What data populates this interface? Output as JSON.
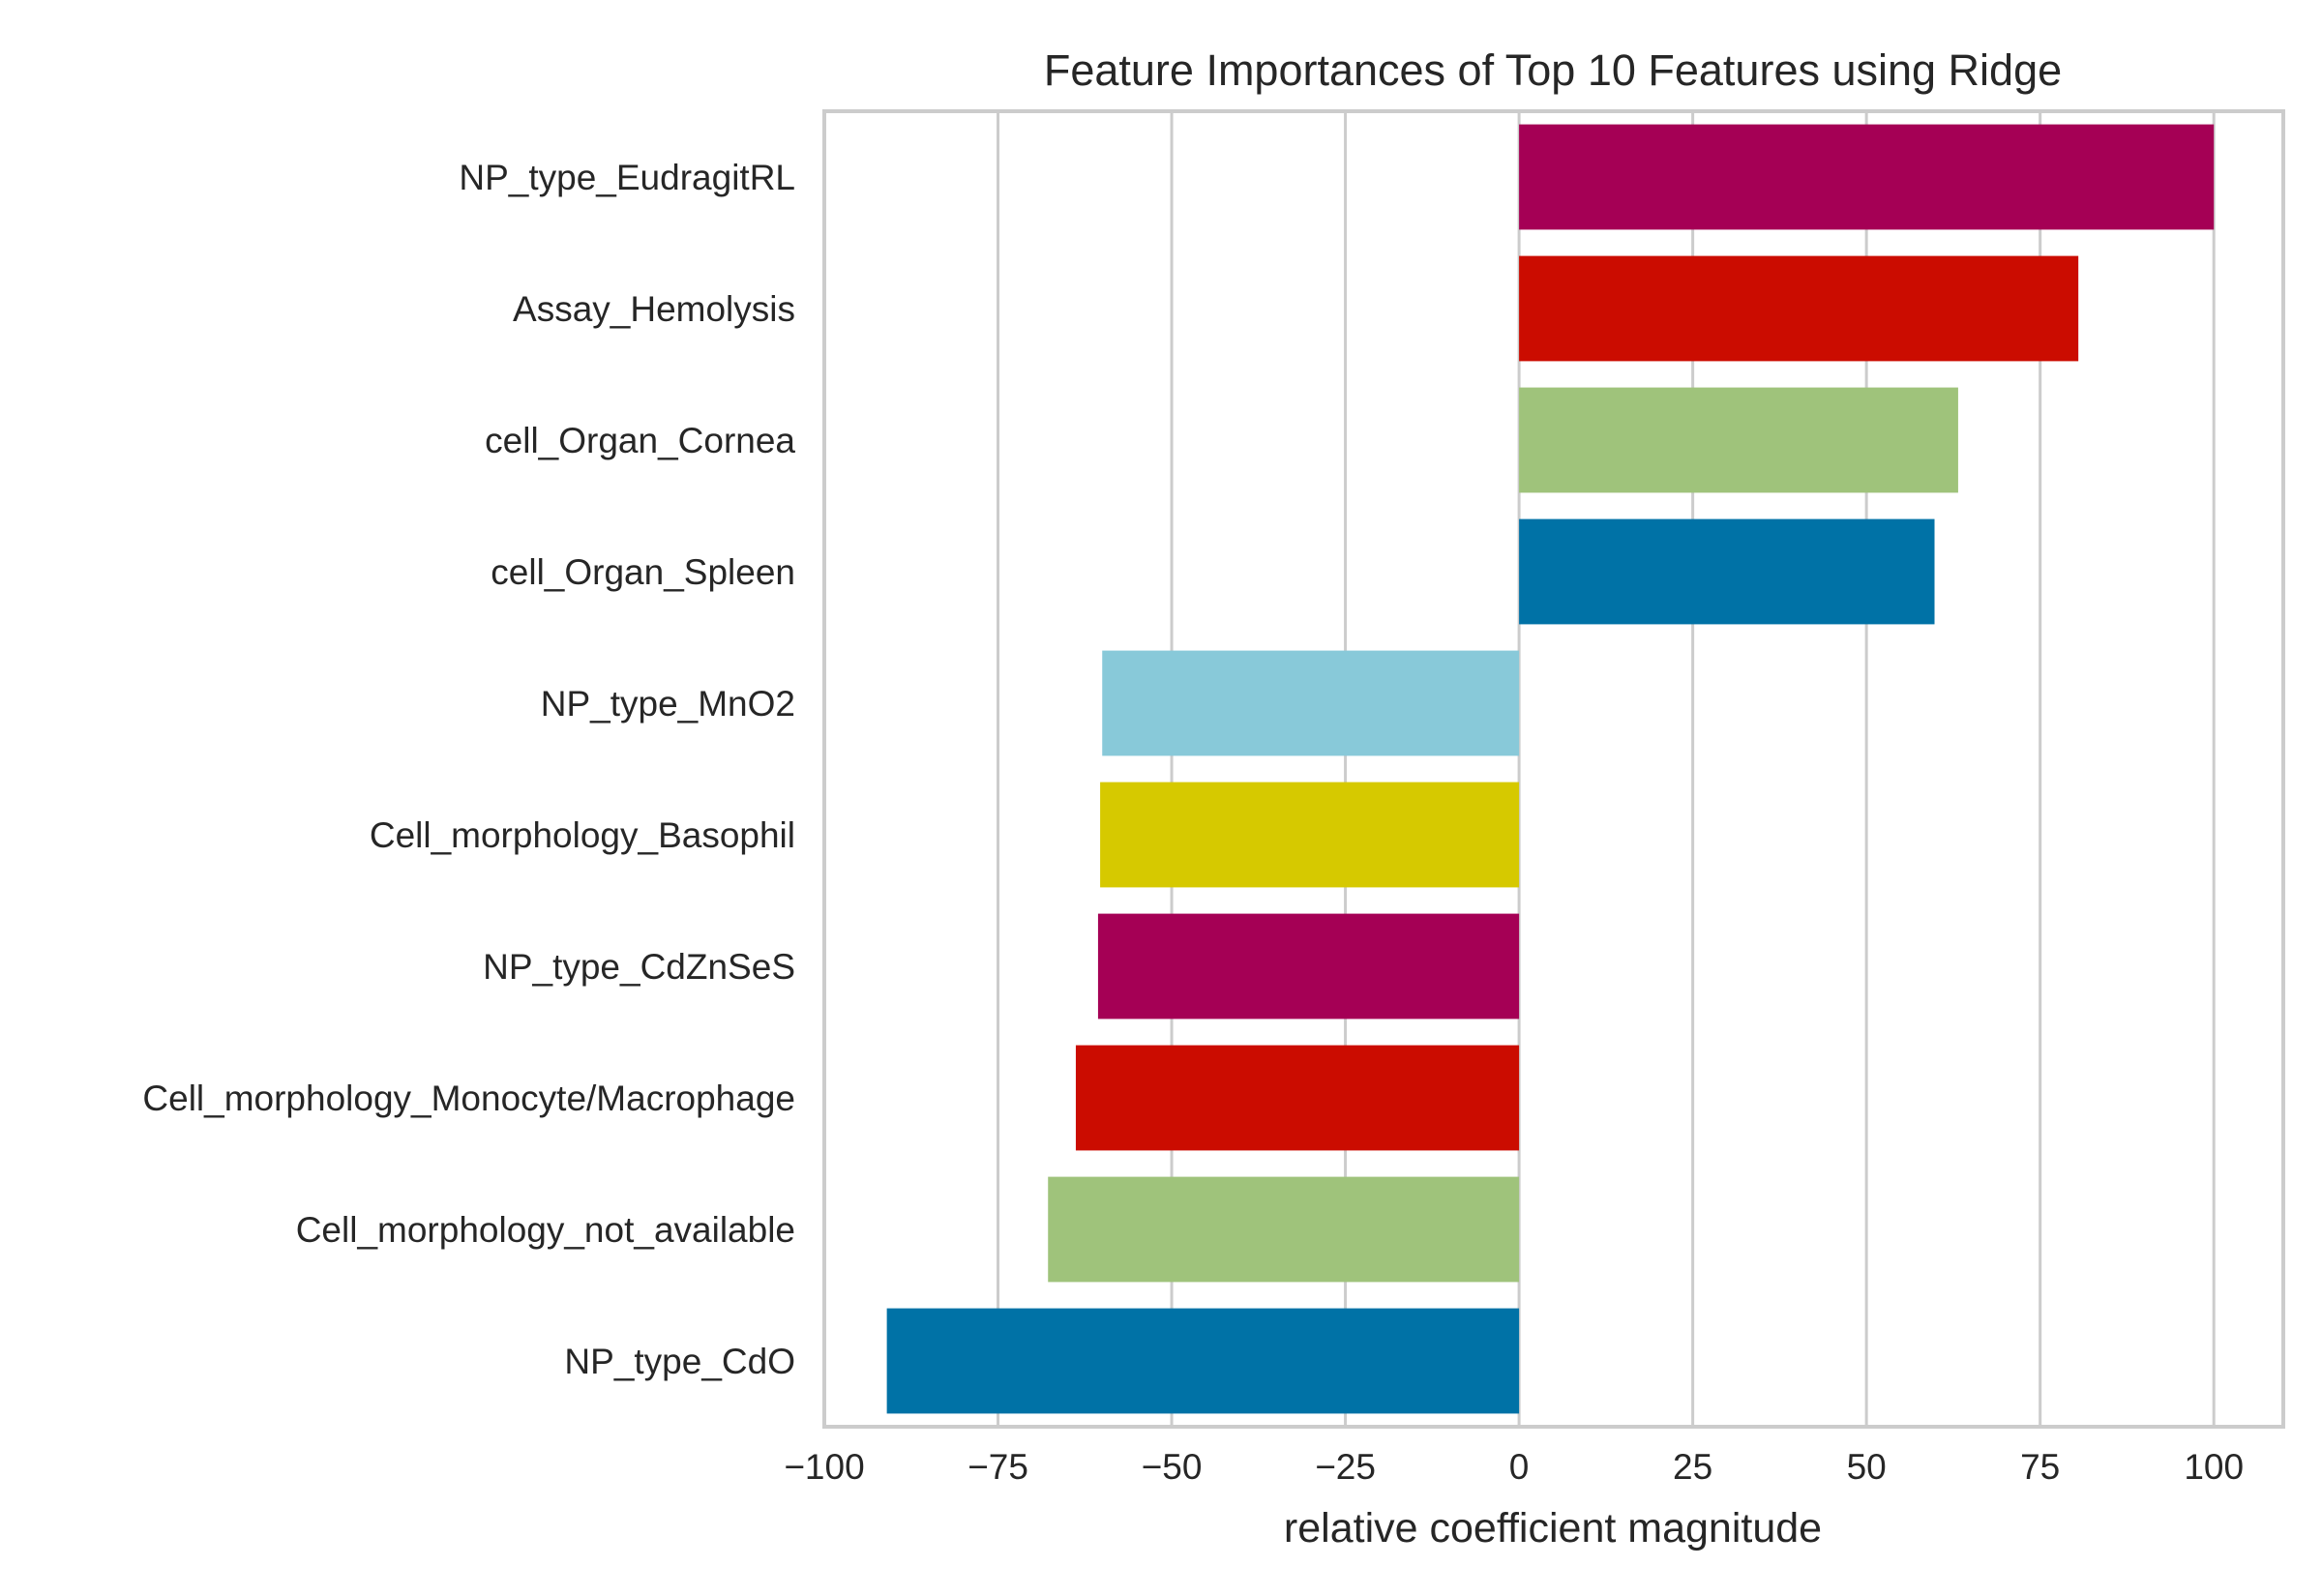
{
  "chart_data": {
    "type": "bar",
    "orientation": "horizontal",
    "title": "Feature Importances of Top 10 Features using Ridge",
    "xlabel": "relative coefficient magnitude",
    "ylabel": "",
    "xlim": [
      -100,
      110
    ],
    "xticks": [
      -100,
      -75,
      -50,
      -25,
      0,
      25,
      50,
      75,
      100
    ],
    "xtick_labels": [
      "−100",
      "−75",
      "−50",
      "−25",
      "0",
      "25",
      "50",
      "75",
      "100"
    ],
    "grid": true,
    "categories": [
      "NP_type_EudragitRL",
      "Assay_Hemolysis",
      "cell_Organ_Cornea",
      "cell_Organ_Spleen",
      "NP_type_MnO2",
      "Cell_morphology_Basophil",
      "NP_type_CdZnSeS",
      "Cell_morphology_Monocyte/Macrophage",
      "Cell_morphology_not_available",
      "NP_type_CdO"
    ],
    "values": [
      100,
      80.5,
      63.2,
      59.8,
      -60.0,
      -60.3,
      -60.6,
      -63.8,
      -67.8,
      -91.0
    ],
    "colors": [
      "#a50055",
      "#cb0c00",
      "#9fc37b",
      "#0072a6",
      "#88c9d9",
      "#d6c900",
      "#a50055",
      "#cb0c00",
      "#9fc37b",
      "#0072a6"
    ]
  }
}
